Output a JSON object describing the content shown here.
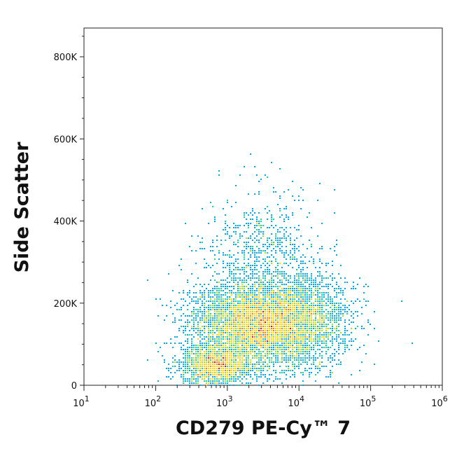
{
  "chart_data": {
    "type": "scatter",
    "style": "flow-cytometry density dot plot (pseudocolor: blue low, red high)",
    "xlabel": "CD279 PE-Cy™ 7",
    "ylabel": "Side Scatter",
    "x_scale": "log",
    "xlim": [
      10,
      1000000
    ],
    "ylim": [
      0,
      870000
    ],
    "x_ticks": [
      {
        "value": 10,
        "base": "10",
        "exp": "1"
      },
      {
        "value": 100,
        "base": "10",
        "exp": "2"
      },
      {
        "value": 1000,
        "base": "10",
        "exp": "3"
      },
      {
        "value": 10000,
        "base": "10",
        "exp": "4"
      },
      {
        "value": 100000,
        "base": "10",
        "exp": "5"
      },
      {
        "value": 1000000,
        "base": "10",
        "exp": "6"
      }
    ],
    "y_ticks": [
      {
        "value": 0,
        "label": "0"
      },
      {
        "value": 200000,
        "label": "200K"
      },
      {
        "value": 400000,
        "label": "400K"
      },
      {
        "value": 600000,
        "label": "600K"
      },
      {
        "value": 800000,
        "label": "800K"
      }
    ],
    "density_colors": [
      "#1f1fd6",
      "#00a8f0",
      "#16d6a0",
      "#a6e01c",
      "#ffd400",
      "#ff7a00",
      "#e8001c"
    ],
    "populations": [
      {
        "cx": 2500,
        "cy": 150000,
        "sx_decades": 0.45,
        "sy": 50000,
        "weight": 0.55
      },
      {
        "cx": 700,
        "cy": 50000,
        "sx_decades": 0.25,
        "sy": 25000,
        "weight": 0.18
      },
      {
        "cx": 12000,
        "cy": 160000,
        "sx_decades": 0.35,
        "sy": 60000,
        "weight": 0.17
      },
      {
        "cx": 3000,
        "cy": 300000,
        "sx_decades": 0.4,
        "sy": 90000,
        "weight": 0.1
      }
    ],
    "grid": false,
    "legend": "none"
  }
}
